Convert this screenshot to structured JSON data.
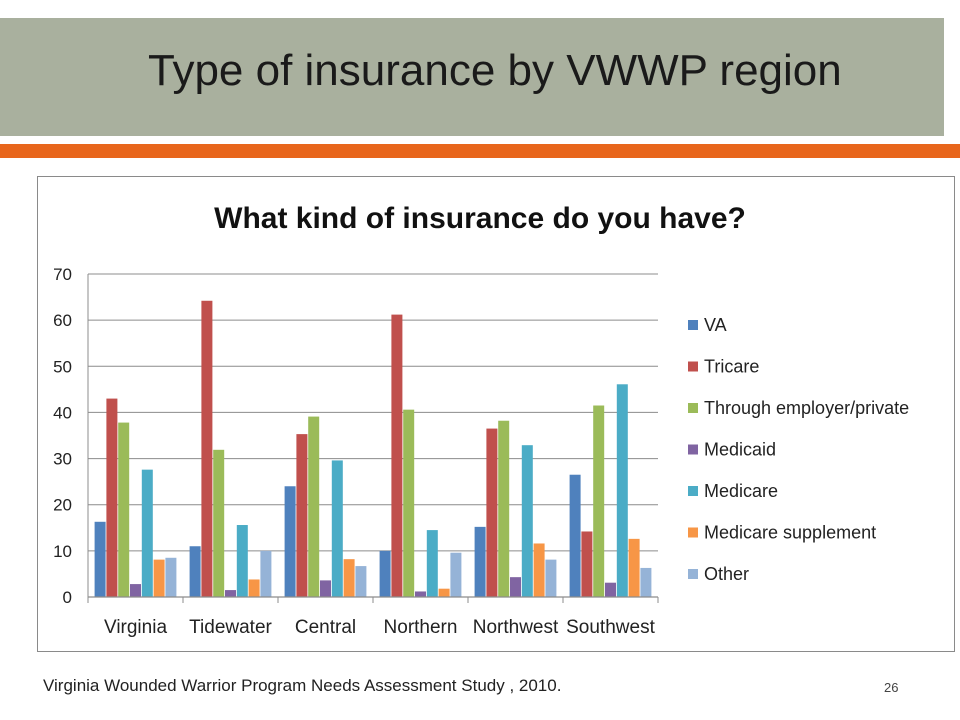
{
  "slide": {
    "title": "Type of insurance by VWWP region",
    "source": "Virginia Wounded Warrior Program Needs Assessment Study , 2010.",
    "page_number": "26"
  },
  "colors": {
    "title_band": "#a9b09e",
    "accent_bar": "#e8661c"
  },
  "chart_data": {
    "type": "bar",
    "title": "What kind of insurance do you have?",
    "xlabel": "",
    "ylabel": "",
    "ylim": [
      0,
      70
    ],
    "yticks": [
      0,
      10,
      20,
      30,
      40,
      50,
      60,
      70
    ],
    "grid": true,
    "legend_position": "right",
    "categories": [
      "Virginia",
      "Tidewater",
      "Central",
      "Northern",
      "Northwest",
      "Southwest"
    ],
    "series": [
      {
        "name": "VA",
        "color": "#4f81bd",
        "values": [
          16.3,
          11,
          24,
          10,
          15.2,
          26.5
        ]
      },
      {
        "name": "Tricare",
        "color": "#c0504d",
        "values": [
          43,
          64.2,
          35.3,
          61.2,
          36.5,
          14.2
        ]
      },
      {
        "name": "Through employer/private",
        "color": "#9bbb59",
        "values": [
          37.8,
          31.9,
          39.1,
          40.6,
          38.2,
          41.5
        ]
      },
      {
        "name": "Medicaid",
        "color": "#8064a2",
        "values": [
          2.8,
          1.5,
          3.6,
          1.2,
          4.3,
          3.1
        ]
      },
      {
        "name": "Medicare",
        "color": "#4bacc6",
        "values": [
          27.6,
          15.6,
          29.6,
          14.5,
          32.9,
          46.1
        ]
      },
      {
        "name": "Medicare supplement",
        "color": "#f79646",
        "values": [
          8.1,
          3.8,
          8.2,
          1.8,
          11.6,
          12.6
        ]
      },
      {
        "name": "Other",
        "color": "#95b3d7",
        "values": [
          8.5,
          10,
          6.7,
          9.6,
          8.1,
          6.3
        ]
      }
    ]
  }
}
